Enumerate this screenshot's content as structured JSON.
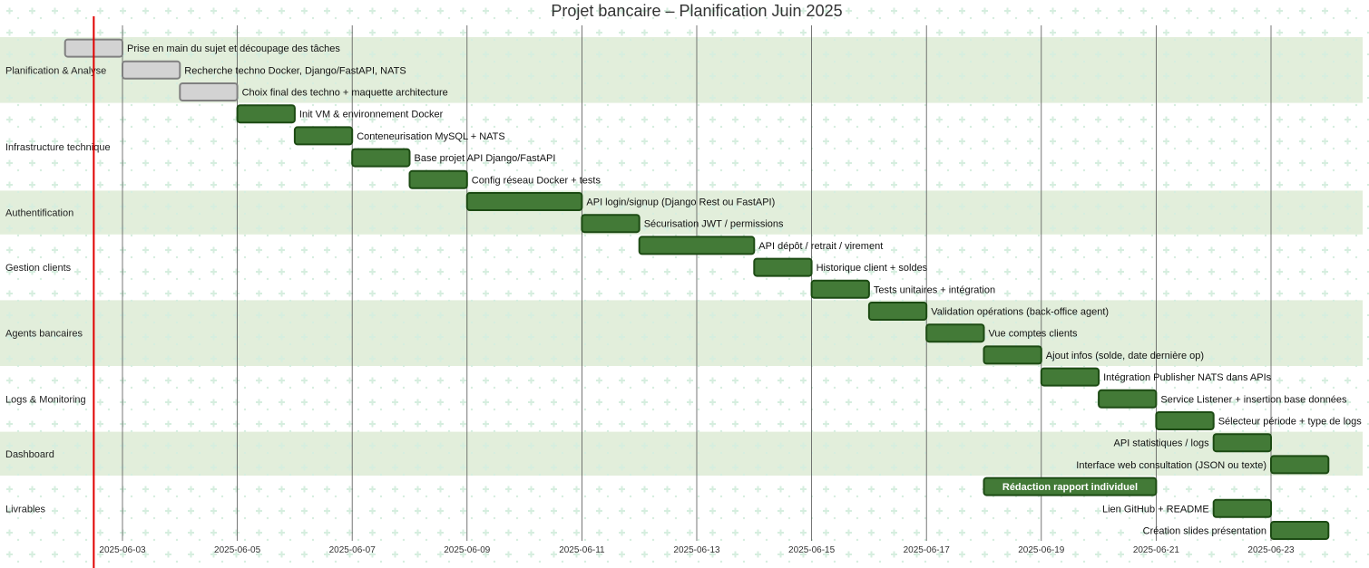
{
  "chart_data": {
    "type": "gantt",
    "title": "Projet bancaire – Planification Juin 2025",
    "today": "2025-06-02.5",
    "x_range": [
      "2025-06-01",
      "2025-06-24"
    ],
    "x_ticks": [
      "2025-06-03",
      "2025-06-05",
      "2025-06-07",
      "2025-06-09",
      "2025-06-11",
      "2025-06-13",
      "2025-06-15",
      "2025-06-17",
      "2025-06-19",
      "2025-06-21",
      "2025-06-23"
    ],
    "colors": {
      "done_fill": "#d3d3d3",
      "done_stroke": "#808080",
      "active_fill": "#437a37",
      "active_stroke": "#1c4a13",
      "section_band": "#e2eedb",
      "today_line": "#e00000",
      "grid": "#555555",
      "pattern": "#d6eedf"
    },
    "sections": [
      {
        "name": "Planification & Analyse",
        "shaded": true,
        "tasks": [
          {
            "label": "Prise en main du sujet et découpage des tâches",
            "start": "2025-06-02",
            "end": "2025-06-03",
            "status": "done",
            "label_pos": "right"
          },
          {
            "label": "Recherche techno Docker, Django/FastAPI, NATS",
            "start": "2025-06-03",
            "end": "2025-06-04",
            "status": "done",
            "label_pos": "right"
          },
          {
            "label": "Choix final des techno + maquette architecture",
            "start": "2025-06-04",
            "end": "2025-06-05",
            "status": "done",
            "label_pos": "right"
          }
        ]
      },
      {
        "name": "Infrastructure technique",
        "shaded": false,
        "tasks": [
          {
            "label": "Init VM & environnement Docker",
            "start": "2025-06-05",
            "end": "2025-06-06",
            "status": "active",
            "label_pos": "right"
          },
          {
            "label": "Conteneurisation MySQL + NATS",
            "start": "2025-06-06",
            "end": "2025-06-07",
            "status": "active",
            "label_pos": "right"
          },
          {
            "label": "Base projet API Django/FastAPI",
            "start": "2025-06-07",
            "end": "2025-06-08",
            "status": "active",
            "label_pos": "right"
          },
          {
            "label": "Config réseau Docker + tests",
            "start": "2025-06-08",
            "end": "2025-06-09",
            "status": "active",
            "label_pos": "right"
          }
        ]
      },
      {
        "name": "Authentification",
        "shaded": true,
        "tasks": [
          {
            "label": "API login/signup (Django Rest ou FastAPI)",
            "start": "2025-06-09",
            "end": "2025-06-11",
            "status": "active",
            "label_pos": "right"
          },
          {
            "label": "Sécurisation JWT / permissions",
            "start": "2025-06-11",
            "end": "2025-06-12",
            "status": "active",
            "label_pos": "right"
          }
        ]
      },
      {
        "name": "Gestion clients",
        "shaded": false,
        "tasks": [
          {
            "label": "API dépôt / retrait / virement",
            "start": "2025-06-12",
            "end": "2025-06-14",
            "status": "active",
            "label_pos": "right"
          },
          {
            "label": "Historique client + soldes",
            "start": "2025-06-14",
            "end": "2025-06-15",
            "status": "active",
            "label_pos": "right"
          },
          {
            "label": "Tests unitaires + intégration",
            "start": "2025-06-15",
            "end": "2025-06-16",
            "status": "active",
            "label_pos": "right"
          }
        ]
      },
      {
        "name": "Agents bancaires",
        "shaded": true,
        "tasks": [
          {
            "label": "Validation opérations (back-office agent)",
            "start": "2025-06-16",
            "end": "2025-06-17",
            "status": "active",
            "label_pos": "right"
          },
          {
            "label": "Vue comptes clients",
            "start": "2025-06-17",
            "end": "2025-06-18",
            "status": "active",
            "label_pos": "right"
          },
          {
            "label": "Ajout infos (solde, date dernière op)",
            "start": "2025-06-18",
            "end": "2025-06-19",
            "status": "active",
            "label_pos": "right"
          }
        ]
      },
      {
        "name": "Logs & Monitoring",
        "shaded": false,
        "tasks": [
          {
            "label": "Intégration Publisher NATS dans APIs",
            "start": "2025-06-19",
            "end": "2025-06-20",
            "status": "active",
            "label_pos": "right"
          },
          {
            "label": "Service Listener + insertion base données",
            "start": "2025-06-20",
            "end": "2025-06-21",
            "status": "active",
            "label_pos": "right"
          },
          {
            "label": "Sélecteur période + type de logs",
            "start": "2025-06-21",
            "end": "2025-06-22",
            "status": "active",
            "label_pos": "right"
          }
        ]
      },
      {
        "name": "Dashboard",
        "shaded": true,
        "tasks": [
          {
            "label": "API statistiques / logs",
            "start": "2025-06-22",
            "end": "2025-06-23",
            "status": "active",
            "label_pos": "left"
          },
          {
            "label": "Interface web consultation (JSON ou texte)",
            "start": "2025-06-23",
            "end": "2025-06-24",
            "status": "active",
            "label_pos": "left"
          }
        ]
      },
      {
        "name": "Livrables",
        "shaded": false,
        "tasks": [
          {
            "label": "Rédaction rapport individuel",
            "start": "2025-06-18",
            "end": "2025-06-21",
            "status": "active",
            "label_pos": "inside"
          },
          {
            "label": "Lien GitHub + README",
            "start": "2025-06-22",
            "end": "2025-06-23",
            "status": "active",
            "label_pos": "left"
          },
          {
            "label": "Création slides présentation",
            "start": "2025-06-23",
            "end": "2025-06-24",
            "status": "active",
            "label_pos": "left"
          }
        ]
      }
    ]
  }
}
